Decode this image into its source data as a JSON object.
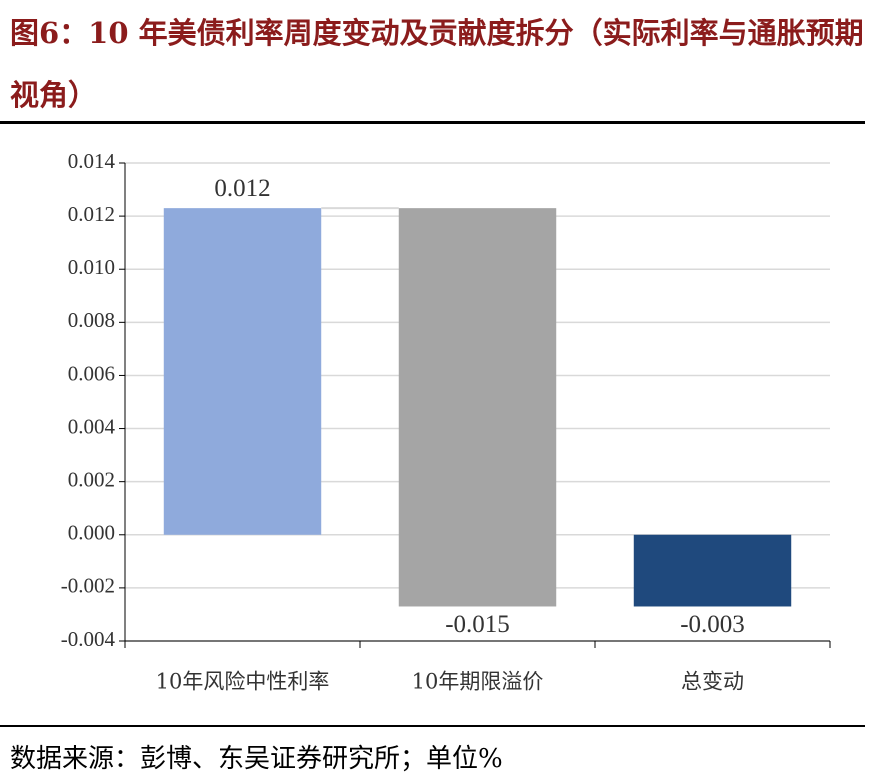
{
  "chart_data": {
    "type": "waterfall",
    "title": "图6：10 年美债利率周度变动及贡献度拆分（实际利率与通胀预期视角）",
    "source": "数据来源：彭博、东吴证券研究所；单位%",
    "categories": [
      "10年风险中性利率",
      "10年期限溢价",
      "总变动"
    ],
    "values": [
      0.0123,
      -0.015,
      -0.0027
    ],
    "value_labels": [
      "0.012",
      "-0.015",
      "-0.003"
    ],
    "colors": [
      "#8faadc",
      "#a5a5a5",
      "#1f497d"
    ],
    "ylim": [
      -0.004,
      0.014
    ],
    "yticks": [
      -0.004,
      -0.002,
      {
        "value": 0,
        "label": "0.000"
      },
      0.002,
      0.004,
      0.006,
      0.008,
      {
        "value": 0.01,
        "label": "0.010"
      },
      0.012,
      0.014
    ],
    "grid": true
  }
}
